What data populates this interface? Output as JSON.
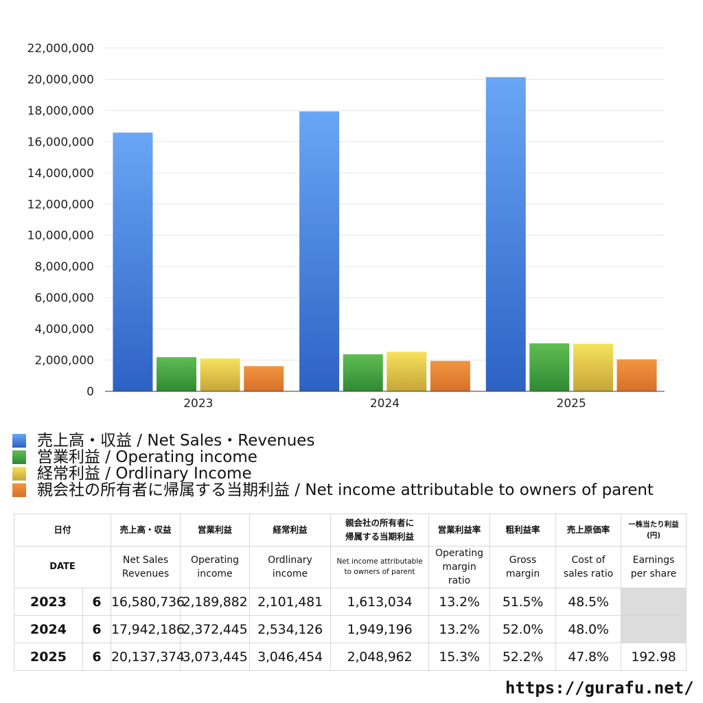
{
  "chart_data": {
    "type": "bar",
    "categories": [
      "2023",
      "2024",
      "2025"
    ],
    "series": [
      {
        "name": "売上高・収益 / Net Sales・Revenues",
        "values": [
          16580736,
          17942186,
          20137374
        ]
      },
      {
        "name": "営業利益 / Operating income",
        "values": [
          2189882,
          2372445,
          3073445
        ]
      },
      {
        "name": "経常利益 / Ordlinary Income",
        "values": [
          2101481,
          2534126,
          3046454
        ]
      },
      {
        "name": "親会社の所有者に帰属する当期利益 / Net income attributable to owners of parent",
        "values": [
          1613034,
          1949196,
          2048962
        ]
      }
    ],
    "ylim": [
      0,
      22000000
    ],
    "yticks": [
      0,
      2000000,
      4000000,
      6000000,
      8000000,
      10000000,
      12000000,
      14000000,
      16000000,
      18000000,
      20000000,
      22000000
    ],
    "ytick_labels": [
      "0",
      "2,000,000",
      "4,000,000",
      "6,000,000",
      "8,000,000",
      "10,000,000",
      "12,000,000",
      "14,000,000",
      "16,000,000",
      "18,000,000",
      "20,000,000",
      "22,000,000"
    ],
    "grid": true,
    "legend_position": "bottom"
  },
  "colors": {
    "sales": [
      "#6aa6f5",
      "#2d62c4"
    ],
    "operating": [
      "#5fbd52",
      "#2f8a33"
    ],
    "ordinary": [
      "#f6e25a",
      "#c6a53a"
    ],
    "net": [
      "#f1953f",
      "#d7702a"
    ]
  },
  "legend": [
    "売上高・収益 / Net Sales・Revenues",
    "営業利益 / Operating income",
    "経常利益 / Ordlinary Income",
    "親会社の所有者に帰属する当期利益 / Net income attributable to owners of parent"
  ],
  "table": {
    "header_jp": {
      "date": "日付",
      "sales": "売上高・収益",
      "operating": "営業利益",
      "ordinary": "経常利益",
      "net_line1": "親会社の所有者に",
      "net_line2": "帰属する当期利益",
      "op_margin": "営業利益率",
      "gross": "粗利益率",
      "cost": "売上原価率",
      "eps_line1": "一株当たり利益",
      "eps_line2": "(円)"
    },
    "header_en": {
      "date": "DATE",
      "sales_line1": "Net Sales",
      "sales_line2": "Revenues",
      "operating_line1": "Operating",
      "operating_line2": "income",
      "ordinary_line1": "Ordlinary",
      "ordinary_line2": "income",
      "net_line1": "Net income attributable",
      "net_line2": "to owners of parent",
      "op_margin_line1": "Operating",
      "op_margin_line2": "margin",
      "op_margin_line3": "ratio",
      "gross_line1": "Gross",
      "gross_line2": "margin",
      "cost_line1": "Cost of",
      "cost_line2": "sales ratio",
      "eps_line1": "Earnings",
      "eps_line2": "per share"
    },
    "rows": [
      {
        "year": "2023",
        "month": "6",
        "sales": "16,580,736",
        "operating": "2,189,882",
        "ordinary": "2,101,481",
        "net": "1,613,034",
        "op_margin": "13.2%",
        "gross": "51.5%",
        "cost": "48.5%",
        "eps": ""
      },
      {
        "year": "2024",
        "month": "6",
        "sales": "17,942,186",
        "operating": "2,372,445",
        "ordinary": "2,534,126",
        "net": "1,949,196",
        "op_margin": "13.2%",
        "gross": "52.0%",
        "cost": "48.0%",
        "eps": ""
      },
      {
        "year": "2025",
        "month": "6",
        "sales": "20,137,374",
        "operating": "3,073,445",
        "ordinary": "3,046,454",
        "net": "2,048,962",
        "op_margin": "15.3%",
        "gross": "52.2%",
        "cost": "47.8%",
        "eps": "192.98"
      }
    ]
  },
  "footer": {
    "site": "https://gurafu.net/"
  }
}
